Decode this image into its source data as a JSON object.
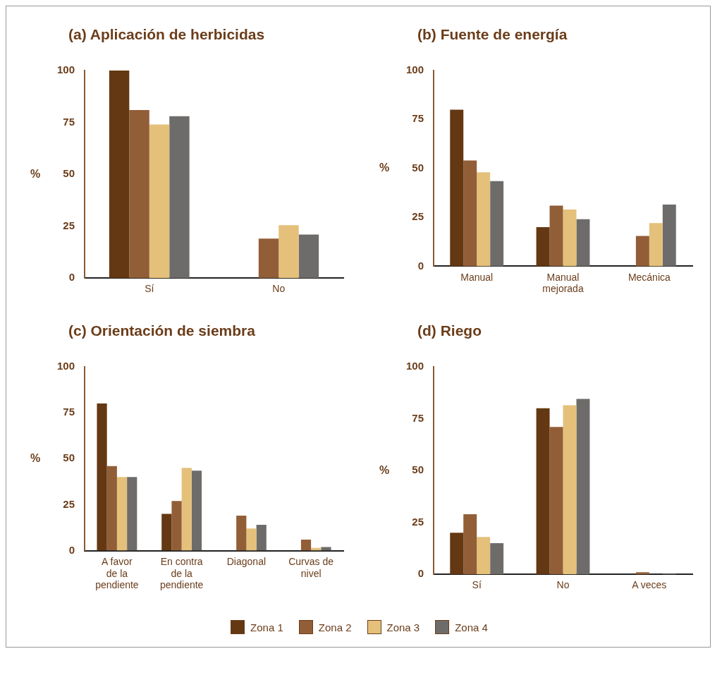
{
  "chart_data": [
    {
      "type": "bar",
      "title": "(a) Aplicación de herbicidas",
      "ylabel": "%",
      "categories": [
        "Sí",
        "No"
      ],
      "ylim": [
        0,
        100
      ],
      "yticks": [
        0,
        25,
        50,
        75,
        100
      ],
      "grid": false,
      "series": [
        {
          "color": "#643812",
          "values": [
            100,
            0
          ]
        },
        {
          "color": "#925e37",
          "values": [
            81,
            19
          ]
        },
        {
          "color": "#e4c07a",
          "values": [
            74,
            25.5
          ]
        },
        {
          "color": "#6e6c6a",
          "values": [
            78,
            21
          ]
        }
      ]
    },
    {
      "type": "bar",
      "title": "(b) Fuente de energía",
      "ylabel": "%",
      "categories": [
        "Manual",
        "Manual mejorada",
        "Mecánica"
      ],
      "ylim": [
        0,
        100
      ],
      "yticks": [
        0,
        25,
        50,
        75,
        100
      ],
      "grid": false,
      "series": [
        {
          "color": "#643812",
          "values": [
            80,
            20,
            0
          ]
        },
        {
          "color": "#925e37",
          "values": [
            54,
            31,
            15.5
          ]
        },
        {
          "color": "#e4c07a",
          "values": [
            48,
            29,
            22
          ]
        },
        {
          "color": "#6e6c6a",
          "values": [
            43.5,
            24,
            31.5
          ]
        }
      ]
    },
    {
      "type": "bar",
      "title": "(c) Orientación de siembra",
      "ylabel": "%",
      "categories": [
        "A favor de la pendiente",
        "En contra de la pendiente",
        "Diagonal",
        "Curvas de nivel"
      ],
      "ylim": [
        0,
        100
      ],
      "yticks": [
        0,
        25,
        50,
        75,
        100
      ],
      "grid": false,
      "series": [
        {
          "color": "#643812",
          "values": [
            80,
            20,
            0,
            0
          ]
        },
        {
          "color": "#925e37",
          "values": [
            46,
            27,
            19,
            6
          ]
        },
        {
          "color": "#e4c07a",
          "values": [
            40,
            45,
            12,
            1.5
          ]
        },
        {
          "color": "#6e6c6a",
          "values": [
            40,
            43.5,
            14,
            2
          ]
        }
      ]
    },
    {
      "type": "bar",
      "title": "(d) Riego",
      "ylabel": "%",
      "categories": [
        "Sí",
        "No",
        "A veces"
      ],
      "ylim": [
        0,
        100
      ],
      "yticks": [
        0,
        25,
        50,
        75,
        100
      ],
      "grid": false,
      "legend": "bottom",
      "series": [
        {
          "name": "Zona 1",
          "color": "#643812",
          "values": [
            20,
            80,
            0
          ]
        },
        {
          "name": "Zona 2",
          "color": "#925e37",
          "values": [
            29,
            71,
            1
          ]
        },
        {
          "name": "Zona 3",
          "color": "#e4c07a",
          "values": [
            18,
            81.5,
            0
          ]
        },
        {
          "name": "Zona 4",
          "color": "#6e6c6a",
          "values": [
            15,
            84.5,
            0.5
          ]
        }
      ]
    }
  ]
}
